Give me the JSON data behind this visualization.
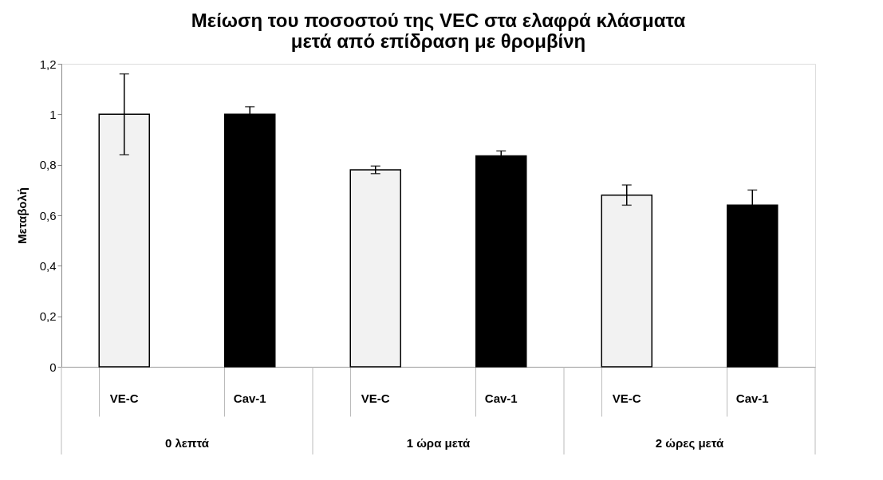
{
  "chart_data": {
    "type": "bar",
    "title": [
      "Μείωση του ποσοστού της VEC στα ελαφρά κλάσματα",
      "μετά από επίδραση με θρομβίνη"
    ],
    "ylabel": "Μεταβολή",
    "categories": [
      "VE-C",
      "Cav-1",
      "VE-C",
      "Cav-1",
      "VE-C",
      "Cav-1"
    ],
    "values": [
      1.0,
      1.0,
      0.78,
      0.835,
      0.68,
      0.64
    ],
    "errors": [
      0.16,
      0.03,
      0.015,
      0.02,
      0.04,
      0.06
    ],
    "colors": [
      "#f2f2f2",
      "#000000",
      "#f2f2f2",
      "#000000",
      "#f2f2f2",
      "#000000"
    ],
    "ylim": [
      0,
      1.2
    ],
    "yticks": [
      0,
      {
        "value": 0.2,
        "label": "0,2"
      },
      {
        "value": 0.4,
        "label": "0,4"
      },
      {
        "value": 0.6,
        "label": "0,6"
      },
      {
        "value": 0.8,
        "label": "0,8"
      },
      1,
      {
        "value": 1.2,
        "label": "1,2"
      }
    ],
    "annotations": [
      "0 λεπτά",
      "1 ώρα μετά",
      "2 ώρες μετά"
    ],
    "grid": false
  }
}
